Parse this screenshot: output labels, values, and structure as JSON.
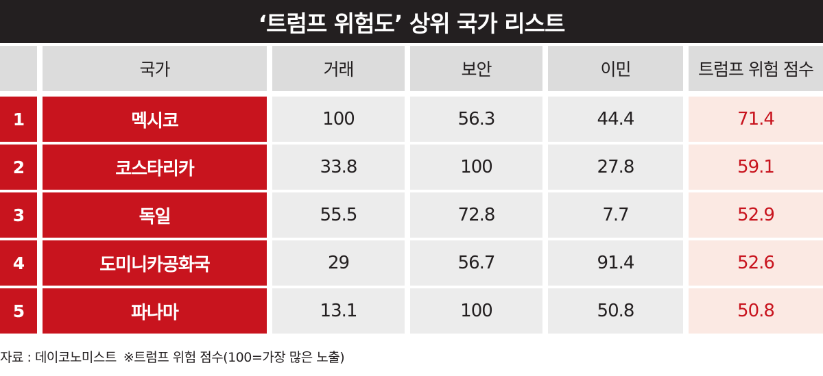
{
  "title": "‘트럼프 위험도’ 상위 국가 리스트",
  "header": {
    "rank": "",
    "country": "국가",
    "trade": "거래",
    "security": "보안",
    "immigration": "이민",
    "score": "트럼프 위험 점수"
  },
  "rows": [
    {
      "rank": "1",
      "country": "멕시코",
      "trade": "100",
      "security": "56.3",
      "immigration": "44.4",
      "score": "71.4"
    },
    {
      "rank": "2",
      "country": "코스타리카",
      "trade": "33.8",
      "security": "100",
      "immigration": "27.8",
      "score": "59.1"
    },
    {
      "rank": "3",
      "country": "독일",
      "trade": "55.5",
      "security": "72.8",
      "immigration": "7.7",
      "score": "52.9"
    },
    {
      "rank": "4",
      "country": "도미니카공화국",
      "trade": "29",
      "security": "56.7",
      "immigration": "91.4",
      "score": "52.6"
    },
    {
      "rank": "5",
      "country": "파나마",
      "trade": "13.1",
      "security": "100",
      "immigration": "50.8",
      "score": "50.8"
    }
  ],
  "footer": {
    "source": "자료 : 데이코노미스트",
    "note": "※트럼프 위험 점수(100=가장 많은 노출)"
  },
  "colors": {
    "title_bg": "#231f20",
    "accent_red": "#c8141e",
    "header_bg": "#dcdcdc",
    "cell_bg": "#ececec",
    "score_bg": "#fbe9e3"
  }
}
